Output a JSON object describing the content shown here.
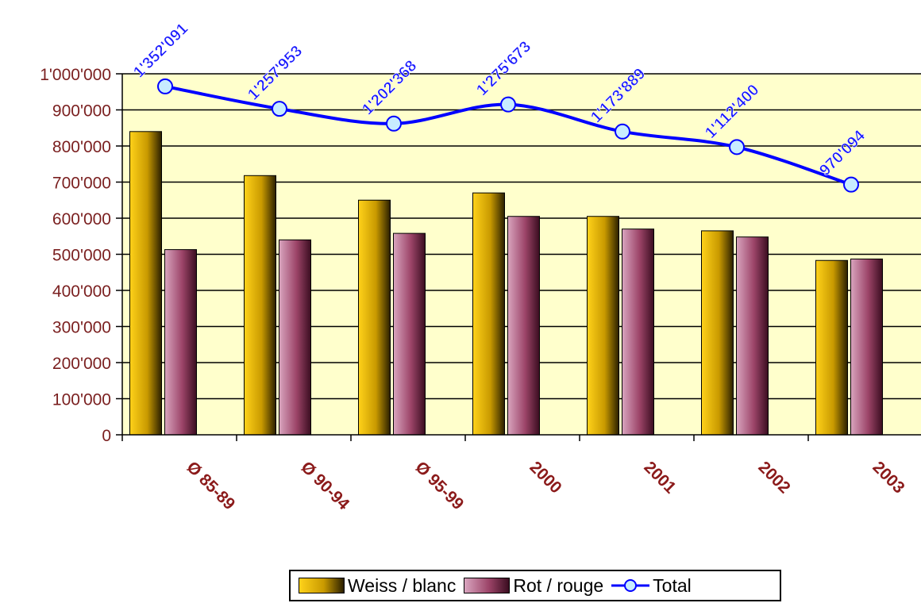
{
  "chart_data": {
    "type": "bar",
    "categories": [
      "Ø 85-89",
      "Ø 90-94",
      "Ø 95-99",
      "2000",
      "2001",
      "2002",
      "2003"
    ],
    "series": [
      {
        "name": "Weiss / blanc",
        "type": "bar",
        "values": [
          840000,
          718000,
          650000,
          670000,
          605000,
          565000,
          483000
        ]
      },
      {
        "name": "Rot / rouge",
        "type": "bar",
        "values": [
          513000,
          540000,
          558000,
          605000,
          570000,
          548000,
          487000
        ]
      },
      {
        "name": "Total",
        "type": "line",
        "values": [
          965000,
          903000,
          862000,
          915000,
          840000,
          797000,
          693000
        ],
        "labels": [
          "1'352'091",
          "1'257'953",
          "1'202'368",
          "1'275'673",
          "1'173'889",
          "1'112'400",
          "970'094"
        ]
      }
    ],
    "ylim": [
      0,
      1000000
    ],
    "yticks": [
      0,
      100000,
      200000,
      300000,
      400000,
      500000,
      600000,
      700000,
      800000,
      900000,
      1000000
    ],
    "ytick_labels": [
      "0",
      "100'000",
      "200'000",
      "300'000",
      "400'000",
      "500'000",
      "600'000",
      "700'000",
      "800'000",
      "900'000",
      "1'000'000"
    ],
    "grid": true,
    "legend_position": "bottom",
    "colors": {
      "plot_background": "#ffffcc",
      "white_wine": "#e0b000",
      "red_wine": "#a04870",
      "total_line": "#0000ff",
      "total_marker_fill": "#c8ecff",
      "tick_label": "#7a1f1f"
    }
  },
  "legend": {
    "white_label": "Weiss / blanc",
    "red_label": "Rot / rouge",
    "total_label": "Total"
  }
}
